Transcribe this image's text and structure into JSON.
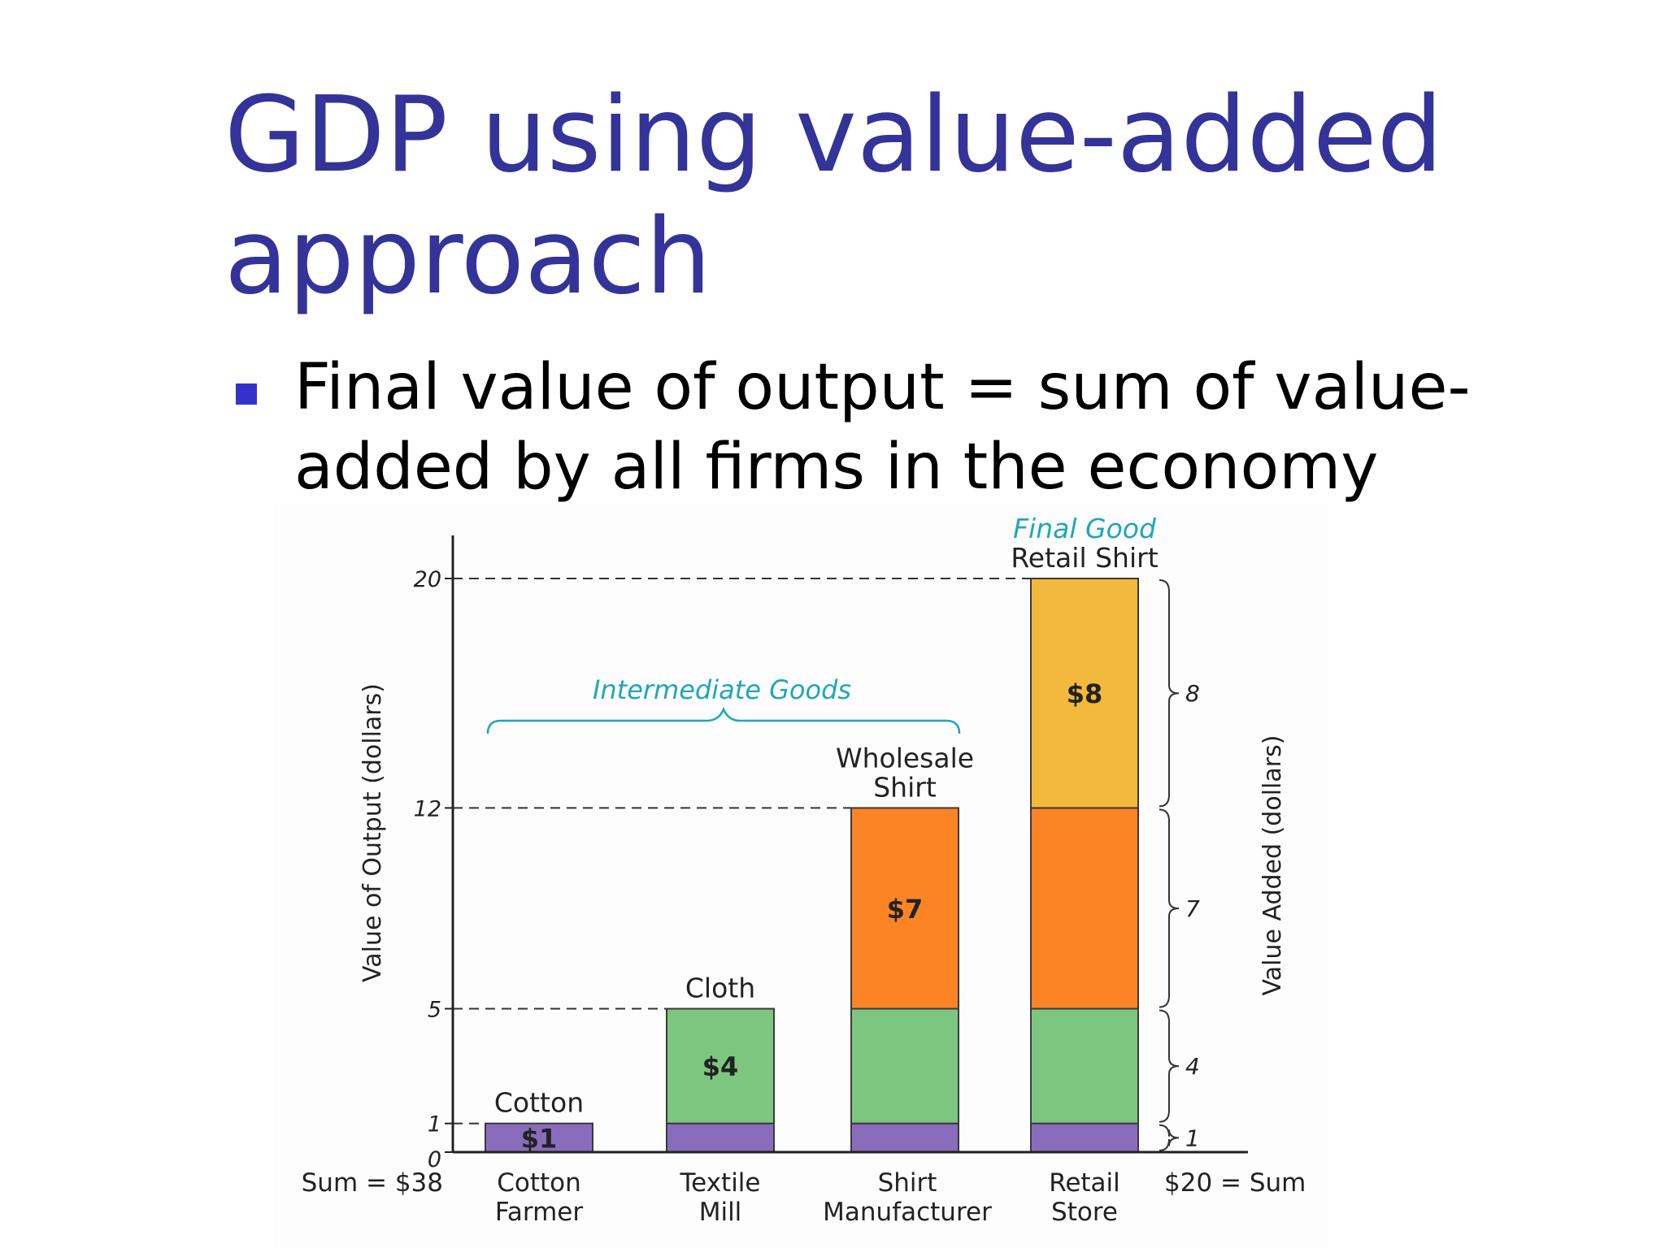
{
  "slide": {
    "title_line1": "GDP using value-added",
    "title_line2": "approach",
    "bullet": "Final value of output = sum of value-added by all firms in the economy"
  },
  "colors": {
    "title": "#333399",
    "bullet": "#3333cc",
    "cotton": "#8a6cbd",
    "cloth": "#7dc67f",
    "shirt": "#fc8424",
    "retail": "#f3b93c",
    "teal": "#1fa7b8"
  },
  "chart_data": {
    "type": "bar",
    "stacked": true,
    "categories": [
      "Cotton Farmer",
      "Textile Mill",
      "Shirt Manufacturer",
      "Retail Store"
    ],
    "category_lines": [
      [
        "Cotton",
        "Farmer"
      ],
      [
        "Textile",
        "Mill"
      ],
      [
        "Shirt",
        "Manufacturer"
      ],
      [
        "Retail",
        "Store"
      ]
    ],
    "bar_tops": [
      {
        "lines": [
          "Cotton"
        ],
        "value": 1
      },
      {
        "lines": [
          "Cloth"
        ],
        "value": 5
      },
      {
        "lines": [
          "Wholesale",
          "Shirt"
        ],
        "value": 12
      },
      {
        "lines": [
          "Final Good",
          "Retail Shirt"
        ],
        "value": 20
      }
    ],
    "segments": [
      {
        "name": "cotton",
        "values": [
          1,
          1,
          1,
          1
        ],
        "color": "#8a6cbd",
        "label": "$1",
        "label_bar": 0
      },
      {
        "name": "cloth",
        "values": [
          0,
          4,
          4,
          4
        ],
        "color": "#7dc67f",
        "label": "$4",
        "label_bar": 1
      },
      {
        "name": "shirt",
        "values": [
          0,
          0,
          7,
          7
        ],
        "color": "#fc8424",
        "label": "$7",
        "label_bar": 2
      },
      {
        "name": "retail",
        "values": [
          0,
          0,
          0,
          8
        ],
        "color": "#f3b93c",
        "label": "$8",
        "label_bar": 3
      }
    ],
    "ylabel": "Value of Output (dollars)",
    "y2label": "Value Added (dollars)",
    "yticks": [
      0,
      1,
      5,
      12,
      20
    ],
    "ylim": [
      0,
      21.5
    ],
    "dashed_levels": [
      1,
      5,
      12,
      20
    ],
    "value_added_braces": [
      {
        "from": 0,
        "to": 1,
        "label": "1"
      },
      {
        "from": 1,
        "to": 5,
        "label": "4"
      },
      {
        "from": 5,
        "to": 12,
        "label": "7"
      },
      {
        "from": 12,
        "to": 20,
        "label": "8"
      }
    ],
    "intermediate_label": "Intermediate Goods",
    "sum_left_prefix": "Sum = ",
    "sum_left_value": "$38",
    "sum_right_value": "$20",
    "sum_right_suffix": " = Sum"
  }
}
